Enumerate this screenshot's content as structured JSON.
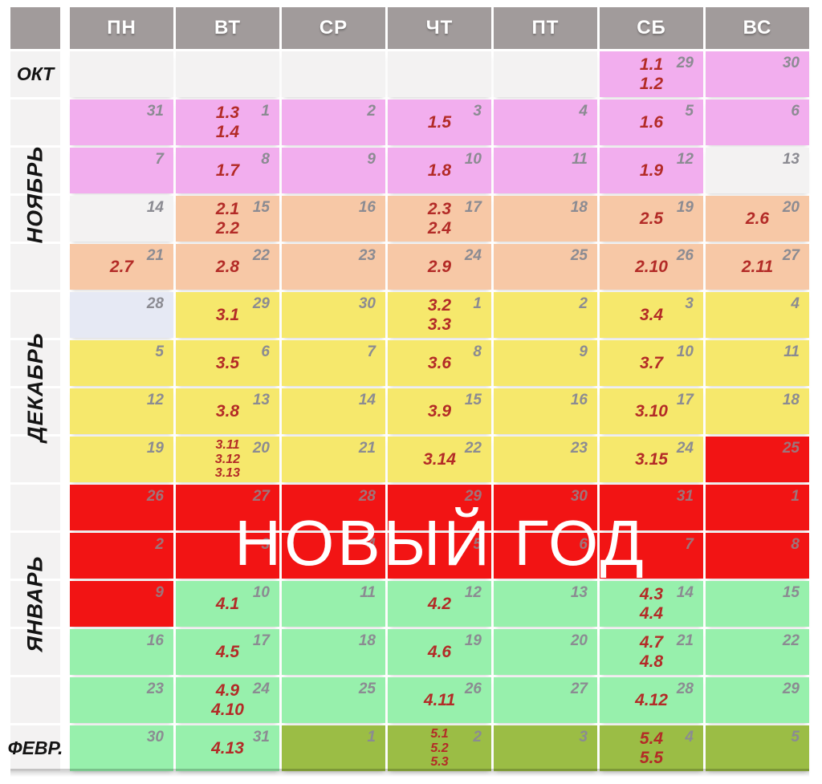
{
  "header": {
    "days": [
      "ПН",
      "ВТ",
      "СР",
      "ЧТ",
      "ПТ",
      "СБ",
      "ВС"
    ]
  },
  "months": [
    {
      "label": "ОКТ",
      "orientation": "horizontal",
      "row_start": 1,
      "row_end": 1
    },
    {
      "label": "НОЯБРЬ",
      "orientation": "vertical",
      "row_start": 2,
      "row_end": 5
    },
    {
      "label": "ДЕКАБРЬ",
      "orientation": "vertical",
      "row_start": 6,
      "row_end": 9
    },
    {
      "label": "ЯНВАРЬ",
      "orientation": "vertical",
      "row_start": 10,
      "row_end": 14
    },
    {
      "label": "ФЕВР.",
      "orientation": "horizontal",
      "row_start": 15,
      "row_end": 15
    }
  ],
  "overlay": {
    "text": "НОВЫЙ ГОД",
    "row_start": 10,
    "row_end": 11
  },
  "colors": {
    "header_bg": "#A19B9B",
    "header_text": "#FFFFFF",
    "label_bg": "#F3F2F2",
    "month_text": "#141414",
    "empty": "#F3F2F2",
    "pink": "#F2AEEE",
    "peach": "#F7C8A6",
    "bluegray": "#E6E9F4",
    "yellow": "#F6E86C",
    "red": "#F21414",
    "green": "#97F0AC",
    "olive": "#9BBD45",
    "lesson_text": "#B32B27",
    "day_text": "#8B8B92",
    "overlay_text": "#FFFFFF"
  },
  "rows": [
    {
      "cells": [
        {
          "bg": "empty"
        },
        {
          "bg": "empty"
        },
        {
          "bg": "empty"
        },
        {
          "bg": "empty"
        },
        {
          "bg": "empty"
        },
        {
          "bg": "pink",
          "lessons": [
            "1.1",
            "1.2"
          ],
          "day": "29"
        },
        {
          "bg": "pink",
          "day": "30"
        }
      ]
    },
    {
      "cells": [
        {
          "bg": "pink",
          "day": "31"
        },
        {
          "bg": "pink",
          "lessons": [
            "1.3",
            "1.4"
          ],
          "day": "1"
        },
        {
          "bg": "pink",
          "day": "2"
        },
        {
          "bg": "pink",
          "lessons": [
            "1.5"
          ],
          "day": "3"
        },
        {
          "bg": "pink",
          "day": "4"
        },
        {
          "bg": "pink",
          "lessons": [
            "1.6"
          ],
          "day": "5"
        },
        {
          "bg": "pink",
          "day": "6"
        }
      ]
    },
    {
      "cells": [
        {
          "bg": "pink",
          "day": "7"
        },
        {
          "bg": "pink",
          "lessons": [
            "1.7"
          ],
          "day": "8"
        },
        {
          "bg": "pink",
          "day": "9"
        },
        {
          "bg": "pink",
          "lessons": [
            "1.8"
          ],
          "day": "10"
        },
        {
          "bg": "pink",
          "day": "11"
        },
        {
          "bg": "pink",
          "lessons": [
            "1.9"
          ],
          "day": "12"
        },
        {
          "bg": "empty",
          "day": "13"
        }
      ]
    },
    {
      "cells": [
        {
          "bg": "empty",
          "day": "14"
        },
        {
          "bg": "peach",
          "lessons": [
            "2.1",
            "2.2"
          ],
          "day": "15"
        },
        {
          "bg": "peach",
          "day": "16"
        },
        {
          "bg": "peach",
          "lessons": [
            "2.3",
            "2.4"
          ],
          "day": "17"
        },
        {
          "bg": "peach",
          "day": "18"
        },
        {
          "bg": "peach",
          "lessons": [
            "2.5"
          ],
          "day": "19"
        },
        {
          "bg": "peach",
          "lessons": [
            "2.6"
          ],
          "day": "20"
        }
      ]
    },
    {
      "cells": [
        {
          "bg": "peach",
          "lessons": [
            "2.7"
          ],
          "day": "21"
        },
        {
          "bg": "peach",
          "lessons": [
            "2.8"
          ],
          "day": "22"
        },
        {
          "bg": "peach",
          "day": "23"
        },
        {
          "bg": "peach",
          "lessons": [
            "2.9"
          ],
          "day": "24"
        },
        {
          "bg": "peach",
          "day": "25"
        },
        {
          "bg": "peach",
          "lessons": [
            "2.10"
          ],
          "day": "26"
        },
        {
          "bg": "peach",
          "lessons": [
            "2.11"
          ],
          "day": "27"
        }
      ]
    },
    {
      "cells": [
        {
          "bg": "bluegray",
          "day": "28"
        },
        {
          "bg": "yellow",
          "lessons": [
            "3.1"
          ],
          "day": "29"
        },
        {
          "bg": "yellow",
          "day": "30"
        },
        {
          "bg": "yellow",
          "lessons": [
            "3.2",
            "3.3"
          ],
          "day": "1"
        },
        {
          "bg": "yellow",
          "day": "2"
        },
        {
          "bg": "yellow",
          "lessons": [
            "3.4"
          ],
          "day": "3"
        },
        {
          "bg": "yellow",
          "day": "4"
        }
      ]
    },
    {
      "cells": [
        {
          "bg": "yellow",
          "day": "5"
        },
        {
          "bg": "yellow",
          "lessons": [
            "3.5"
          ],
          "day": "6"
        },
        {
          "bg": "yellow",
          "day": "7"
        },
        {
          "bg": "yellow",
          "lessons": [
            "3.6"
          ],
          "day": "8"
        },
        {
          "bg": "yellow",
          "day": "9"
        },
        {
          "bg": "yellow",
          "lessons": [
            "3.7"
          ],
          "day": "10"
        },
        {
          "bg": "yellow",
          "day": "11"
        }
      ]
    },
    {
      "cells": [
        {
          "bg": "yellow",
          "day": "12"
        },
        {
          "bg": "yellow",
          "lessons": [
            "3.8"
          ],
          "day": "13"
        },
        {
          "bg": "yellow",
          "day": "14"
        },
        {
          "bg": "yellow",
          "lessons": [
            "3.9"
          ],
          "day": "15"
        },
        {
          "bg": "yellow",
          "day": "16"
        },
        {
          "bg": "yellow",
          "lessons": [
            "3.10"
          ],
          "day": "17"
        },
        {
          "bg": "yellow",
          "day": "18"
        }
      ]
    },
    {
      "cells": [
        {
          "bg": "yellow",
          "day": "19"
        },
        {
          "bg": "yellow",
          "lessons": [
            "3.11",
            "3.12",
            "3.13"
          ],
          "day": "20"
        },
        {
          "bg": "yellow",
          "day": "21"
        },
        {
          "bg": "yellow",
          "lessons": [
            "3.14"
          ],
          "day": "22"
        },
        {
          "bg": "yellow",
          "day": "23"
        },
        {
          "bg": "yellow",
          "lessons": [
            "3.15"
          ],
          "day": "24"
        },
        {
          "bg": "red",
          "day": "25"
        }
      ]
    },
    {
      "cells": [
        {
          "bg": "red",
          "day": "26"
        },
        {
          "bg": "red",
          "day": "27"
        },
        {
          "bg": "red",
          "day": "28"
        },
        {
          "bg": "red",
          "day": "29"
        },
        {
          "bg": "red",
          "day": "30"
        },
        {
          "bg": "red",
          "day": "31"
        },
        {
          "bg": "red",
          "day": "1"
        }
      ]
    },
    {
      "cells": [
        {
          "bg": "red",
          "day": "2"
        },
        {
          "bg": "red",
          "day": "3"
        },
        {
          "bg": "red",
          "day": "4"
        },
        {
          "bg": "red",
          "day": "5"
        },
        {
          "bg": "red",
          "day": "6"
        },
        {
          "bg": "red",
          "day": "7"
        },
        {
          "bg": "red",
          "day": "8"
        }
      ]
    },
    {
      "cells": [
        {
          "bg": "red",
          "day": "9"
        },
        {
          "bg": "green",
          "lessons": [
            "4.1"
          ],
          "day": "10"
        },
        {
          "bg": "green",
          "day": "11"
        },
        {
          "bg": "green",
          "lessons": [
            "4.2"
          ],
          "day": "12"
        },
        {
          "bg": "green",
          "day": "13"
        },
        {
          "bg": "green",
          "lessons": [
            "4.3",
            "4.4"
          ],
          "day": "14"
        },
        {
          "bg": "green",
          "day": "15"
        }
      ]
    },
    {
      "cells": [
        {
          "bg": "green",
          "day": "16"
        },
        {
          "bg": "green",
          "lessons": [
            "4.5"
          ],
          "day": "17"
        },
        {
          "bg": "green",
          "day": "18"
        },
        {
          "bg": "green",
          "lessons": [
            "4.6"
          ],
          "day": "19"
        },
        {
          "bg": "green",
          "day": "20"
        },
        {
          "bg": "green",
          "lessons": [
            "4.7",
            "4.8"
          ],
          "day": "21"
        },
        {
          "bg": "green",
          "day": "22"
        }
      ]
    },
    {
      "cells": [
        {
          "bg": "green",
          "day": "23"
        },
        {
          "bg": "green",
          "lessons": [
            "4.9",
            "4.10"
          ],
          "day": "24"
        },
        {
          "bg": "green",
          "day": "25"
        },
        {
          "bg": "green",
          "lessons": [
            "4.11"
          ],
          "day": "26"
        },
        {
          "bg": "green",
          "day": "27"
        },
        {
          "bg": "green",
          "lessons": [
            "4.12"
          ],
          "day": "28"
        },
        {
          "bg": "green",
          "day": "29"
        }
      ]
    },
    {
      "cells": [
        {
          "bg": "green",
          "day": "30"
        },
        {
          "bg": "green",
          "lessons": [
            "4.13"
          ],
          "day": "31"
        },
        {
          "bg": "olive",
          "day": "1"
        },
        {
          "bg": "olive",
          "lessons": [
            "5.1",
            "5.2",
            "5.3"
          ],
          "day": "2"
        },
        {
          "bg": "olive",
          "day": "3"
        },
        {
          "bg": "olive",
          "lessons": [
            "5.4",
            "5.5"
          ],
          "day": "4"
        },
        {
          "bg": "olive",
          "day": "5"
        }
      ]
    }
  ]
}
